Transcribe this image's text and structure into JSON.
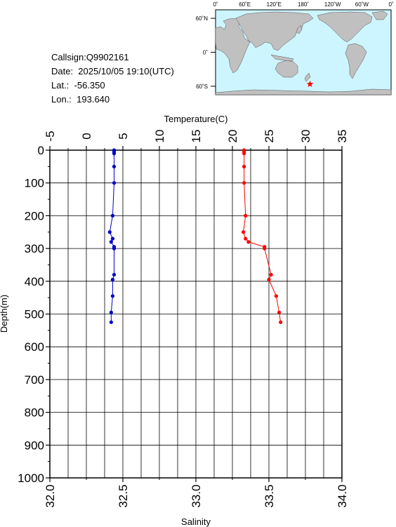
{
  "info": {
    "callsign": "Callsign:Q9902161",
    "date": "Date:  2025/10/05 19:10(UTC)",
    "lat": "Lat.:  -56.350",
    "lon": "Lon.:  193.640"
  },
  "map": {
    "lon_labels": [
      "0˚",
      "60˚E",
      "120˚E",
      "180˚",
      "120˚W",
      "60˚W",
      "0˚"
    ],
    "lat_labels": [
      "60˚N",
      "0˚",
      "60˚S"
    ],
    "marker": {
      "lon": 193.64,
      "lat": -56.35,
      "color": "#ff0000"
    },
    "ocean_color": "#cdf5ff",
    "land_color": "#c0c0c0"
  },
  "chart_data": {
    "type": "line",
    "ylabel": "Depth(m)",
    "ylim": [
      1000,
      0
    ],
    "yticks": [
      "0",
      "100",
      "200",
      "300",
      "400",
      "500",
      "600",
      "700",
      "800",
      "900",
      "1000"
    ],
    "top_axis": {
      "label": "Temperature(C)",
      "lim": [
        -5,
        35
      ],
      "ticks": [
        "-5",
        "0",
        "5",
        "10",
        "15",
        "20",
        "25",
        "30",
        "35"
      ]
    },
    "bottom_axis": {
      "label": "Salinity",
      "lim": [
        32.0,
        34.0
      ],
      "ticks": [
        "32.0",
        "32.5",
        "33.0",
        "33.5",
        "34.0"
      ]
    },
    "grid": true,
    "series": [
      {
        "axis": "top",
        "color": "#ff0000",
        "depth": [
          0,
          5,
          10,
          50,
          100,
          200,
          250,
          270,
          280,
          295,
          300,
          380,
          395,
          445,
          495,
          525
        ],
        "values": [
          21.6,
          21.6,
          21.6,
          21.6,
          21.6,
          21.8,
          21.5,
          21.8,
          22.2,
          24.4,
          24.4,
          25.3,
          25.0,
          26.0,
          26.4,
          26.6
        ]
      },
      {
        "axis": "bottom",
        "color": "#0000cc",
        "depth": [
          0,
          5,
          10,
          50,
          100,
          200,
          250,
          270,
          280,
          295,
          300,
          380,
          395,
          445,
          495,
          525
        ],
        "values": [
          32.44,
          32.44,
          32.44,
          32.44,
          32.44,
          32.43,
          32.41,
          32.43,
          32.42,
          32.44,
          32.44,
          32.44,
          32.43,
          32.43,
          32.42,
          32.42
        ]
      }
    ]
  }
}
